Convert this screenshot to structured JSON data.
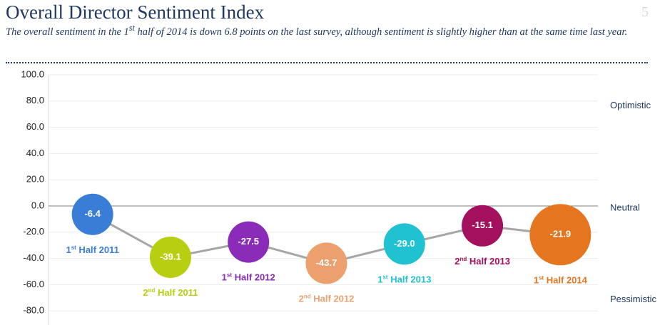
{
  "page_number": "5",
  "chart_data": {
    "type": "bubble-line",
    "title": "Overall Director Sentiment Index",
    "subtitle": "The overall sentiment in the 1st half of 2014 is down 6.8 points on the last survey, although sentiment is slightly higher than at the same time last year.",
    "categories": [
      "1st Half 2011",
      "2nd Half 2011",
      "1st Half 2012",
      "2nd Half 2012",
      "1st Half 2013",
      "2nd Half 2013",
      "1st Half 2014"
    ],
    "values": [
      -6.4,
      -39.1,
      -27.5,
      -43.7,
      -29.0,
      -15.1,
      -21.9
    ],
    "value_labels": [
      "-6.4",
      "-39.1",
      "-27.5",
      "-43.7",
      "-29.0",
      "-15.1",
      "-21.9"
    ],
    "colors": [
      "#3a7dd6",
      "#b7cf10",
      "#8b2cb8",
      "#eca06e",
      "#20c1d1",
      "#a3105d",
      "#e5761f"
    ],
    "line_color": "#a6a6a6",
    "ylim": [
      -90,
      100
    ],
    "yticks": [
      {
        "value": 100,
        "label": "100.0"
      },
      {
        "value": 80,
        "label": "80.0"
      },
      {
        "value": 60,
        "label": "60.0"
      },
      {
        "value": 40,
        "label": "40.0"
      },
      {
        "value": 20,
        "label": "20.0"
      },
      {
        "value": 0,
        "label": "0.0"
      },
      {
        "value": -20,
        "label": "-20.0"
      },
      {
        "value": -40,
        "label": "-40.0"
      },
      {
        "value": -60,
        "label": "-60.0"
      },
      {
        "value": -80,
        "label": "-80.0"
      }
    ],
    "grid": true,
    "annotations": [
      "Optimistic",
      "Neutral",
      "Pessimistic"
    ]
  }
}
